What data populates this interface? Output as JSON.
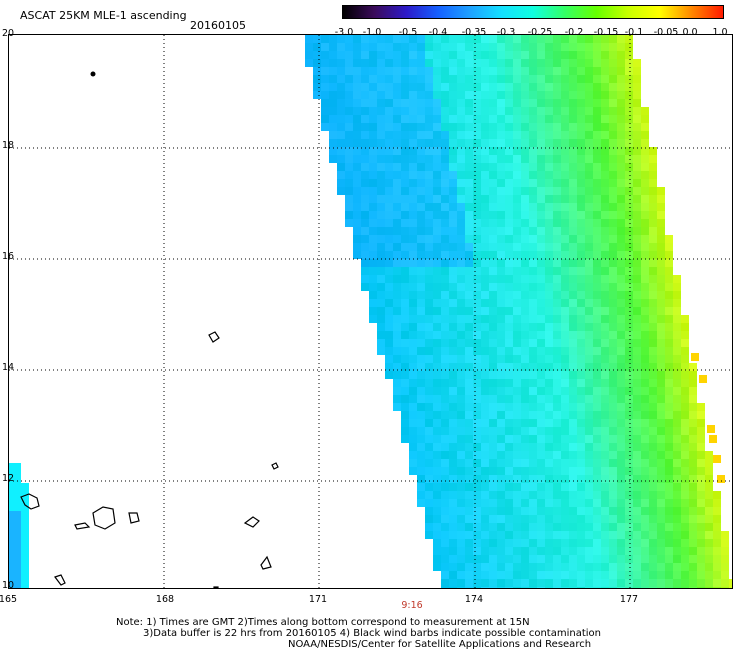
{
  "header": {
    "title": "ASCAT 25KM MLE-1 ascending",
    "date": "20160105"
  },
  "colorbar": {
    "labels": [
      "-3.0",
      "-1.0",
      "-0.5",
      "-0.4",
      "-0.35",
      "-0.3",
      "-0.25",
      "-0.2",
      "-0.15",
      "-0.1",
      "-0.05",
      "0.0",
      "1.0"
    ],
    "colors": [
      "#000000",
      "#3b0b5b",
      "#2d1ac9",
      "#1560ff",
      "#1ea0ff",
      "#14e0ff",
      "#10ffe0",
      "#33ff66",
      "#66ff00",
      "#c8ff00",
      "#ffff00",
      "#ff8800",
      "#ff1a00"
    ]
  },
  "map": {
    "lat_labels": [
      "20",
      "18",
      "16",
      "14",
      "12",
      "10"
    ],
    "lon_labels": [
      "165",
      "168",
      "171",
      "174",
      "177"
    ],
    "time_label": "9:16"
  },
  "footer": {
    "note1": "Note: 1) Times are GMT 2)Times along bottom correspond to measurement at 15N",
    "note2": "3)Data buffer is 22 hrs from 20160105 4) Black wind barbs indicate possible contamination",
    "note3": "NOAA/NESDIS/Center for Satellite Applications and Research"
  }
}
